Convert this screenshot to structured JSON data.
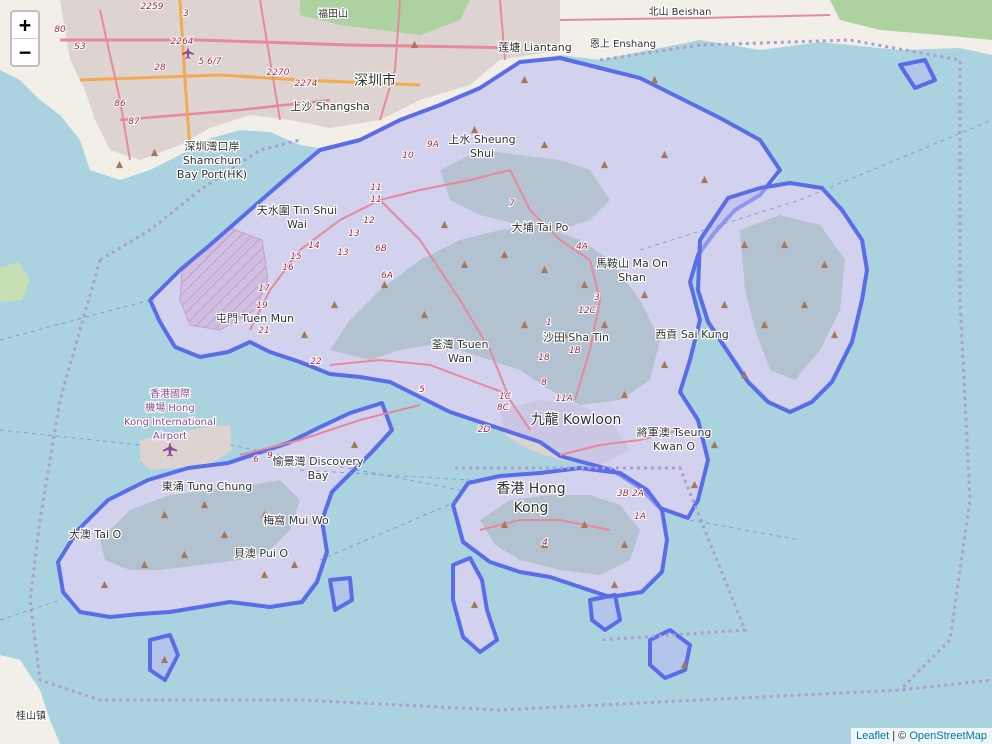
{
  "controls": {
    "zoom_in": "+",
    "zoom_out": "−"
  },
  "attribution": {
    "leaflet": "Leaflet",
    "separator": "| ©",
    "osm": "OpenStreetMap"
  },
  "colors": {
    "water": "#aad3df",
    "land": "#f2efe9",
    "forest": "#9fc59a",
    "urban": "#dcd2cf",
    "overlay_fill": "#b9b9f2",
    "overlay_stroke": "#5a6de6",
    "boundary": "#b19bd3",
    "road": "#e7899a",
    "highway": "#f2a94f"
  },
  "labels": {
    "shenzhen": "深圳市",
    "liantang": "莲塘 Liantang",
    "beishan": "北山 Beishan",
    "enshang": "恩上 Enshang",
    "fuhuashan": "福田山",
    "shangsha": "上沙 Shangsha",
    "shamchun_cn": "深圳灣口岸",
    "shamchun_en1": "Shamchun",
    "shamchun_en2": "Bay Port(HK)",
    "sheungshui_1": "上水 Sheung",
    "sheungshui_2": "Shui",
    "tinshui_1": "天水圍 Tin Shui",
    "tinshui_2": "Wai",
    "taipo": "大埔 Tai Po",
    "maonshan_1": "馬鞍山 Ma On",
    "maonshan_2": "Shan",
    "tuenmun": "屯門 Tuen Mun",
    "saikung": "西貢 Sai Kung",
    "shatin": "沙田 Sha Tin",
    "tsuenwan_1": "荃灣 Tsuen",
    "tsuenwan_2": "Wan",
    "kowloon": "九龍 Kowloon",
    "tseungkwano_1": "將軍澳 Tseung",
    "tseungkwano_2": "Kwan O",
    "airport_1": "香港國際",
    "airport_2": "機場 Hong",
    "airport_3": "Kong International",
    "airport_4": "Airport",
    "discovery_1": "愉景灣 Discovery",
    "discovery_2": "Bay",
    "tungchung": "東涌 Tung Chung",
    "muiwo": "梅窩 Mui Wo",
    "taio": "大澳 Tai O",
    "puio": "貝澳 Pui O",
    "hongkong_1": "香港 Hong",
    "hongkong_2": "Kong",
    "guishan": "桂山镇"
  },
  "route_numbers": {
    "r80": "80",
    "r2259": "2259",
    "r3": "3",
    "r2264": "2264",
    "r567": "5 6/7",
    "r28": "28",
    "r2270": "2270",
    "r2274": "2274",
    "r86": "86",
    "r87": "87",
    "rS3": "S3",
    "r10": "10",
    "r9A": "9A",
    "r11a": "11",
    "r11b": "11",
    "r12": "12",
    "r13a": "13",
    "r13b": "13",
    "r14": "14",
    "r15": "15",
    "r16": "16",
    "r17": "17",
    "r19": "19",
    "r21": "21",
    "r22": "22",
    "r6A": "6A",
    "r6B": "6B",
    "r7": "7",
    "r4A": "4A",
    "r3b": "3",
    "r12C": "12C",
    "r5": "5",
    "r1": "1",
    "r1B": "1B",
    "r18": "18",
    "r11A": "11A",
    "r8": "8",
    "r1C": "1C",
    "r8C": "8C",
    "r2D": "2D",
    "r2A": "2A",
    "r3B": "3B",
    "r1A": "1A",
    "r4": "4",
    "r6": "6",
    "r9": "9"
  }
}
